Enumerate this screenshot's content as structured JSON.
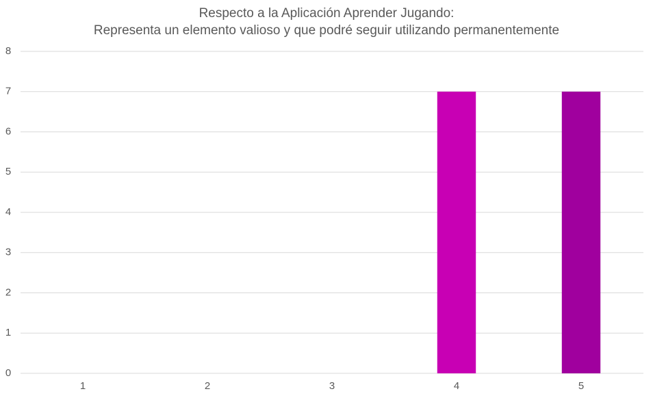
{
  "chart_data": {
    "type": "bar",
    "title": "Respecto a la Aplicación Aprender Jugando:",
    "subtitle": "Representa un elemento valioso y que podré seguir utilizando permanentemente",
    "categories": [
      "1",
      "2",
      "3",
      "4",
      "5"
    ],
    "values": [
      0,
      0,
      0,
      7,
      7
    ],
    "colors": [
      "#e05ad0",
      "#d83ac6",
      "#d01cbc",
      "#c800b4",
      "#a0009e"
    ],
    "ylim": [
      0,
      8
    ],
    "yticks": [
      0,
      1,
      2,
      3,
      4,
      5,
      6,
      7,
      8
    ],
    "grid": true
  }
}
